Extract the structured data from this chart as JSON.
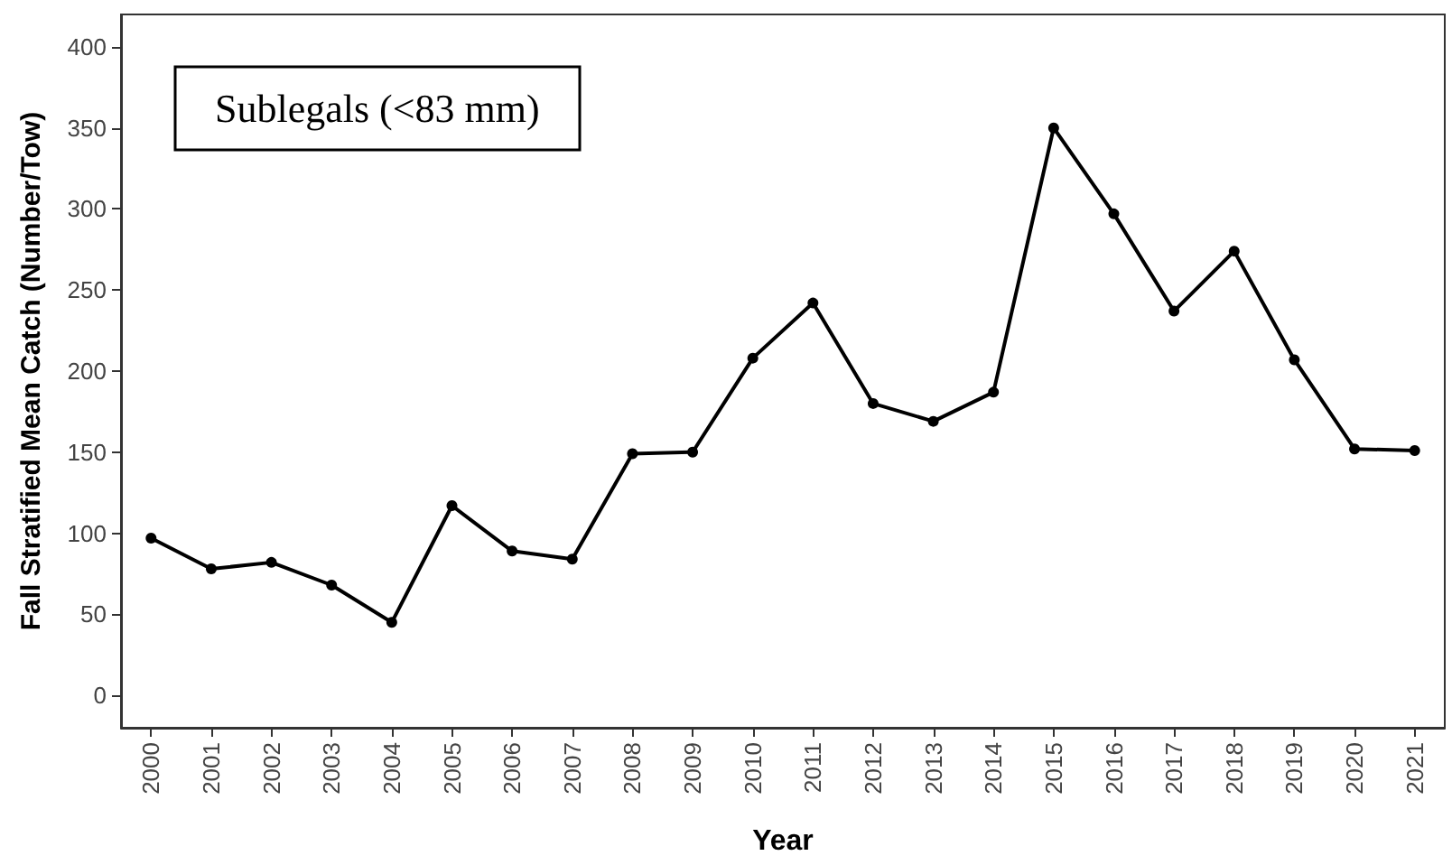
{
  "chart_data": {
    "type": "line",
    "xlabel": "Year",
    "ylabel": "Fall Stratified Mean Catch (Number/Tow)",
    "annotations": [
      "Sublegals (<83 mm)"
    ],
    "categories": [
      "2000",
      "2001",
      "2002",
      "2003",
      "2004",
      "2005",
      "2006",
      "2007",
      "2008",
      "2009",
      "2010",
      "2011",
      "2012",
      "2013",
      "2014",
      "2015",
      "2016",
      "2017",
      "2018",
      "2019",
      "2020",
      "2021"
    ],
    "series": [
      {
        "color": "#000000",
        "values": [
          97,
          78,
          82,
          68,
          45,
          117,
          89,
          84,
          149,
          150,
          208,
          242,
          180,
          169,
          187,
          350,
          297,
          237,
          274,
          207,
          152,
          151
        ]
      }
    ],
    "ylim": [
      -20,
      420
    ],
    "yticks": [
      0,
      50,
      100,
      150,
      200,
      250,
      300,
      350,
      400
    ],
    "grid": false,
    "marker": "circle",
    "line_style": "solid"
  }
}
